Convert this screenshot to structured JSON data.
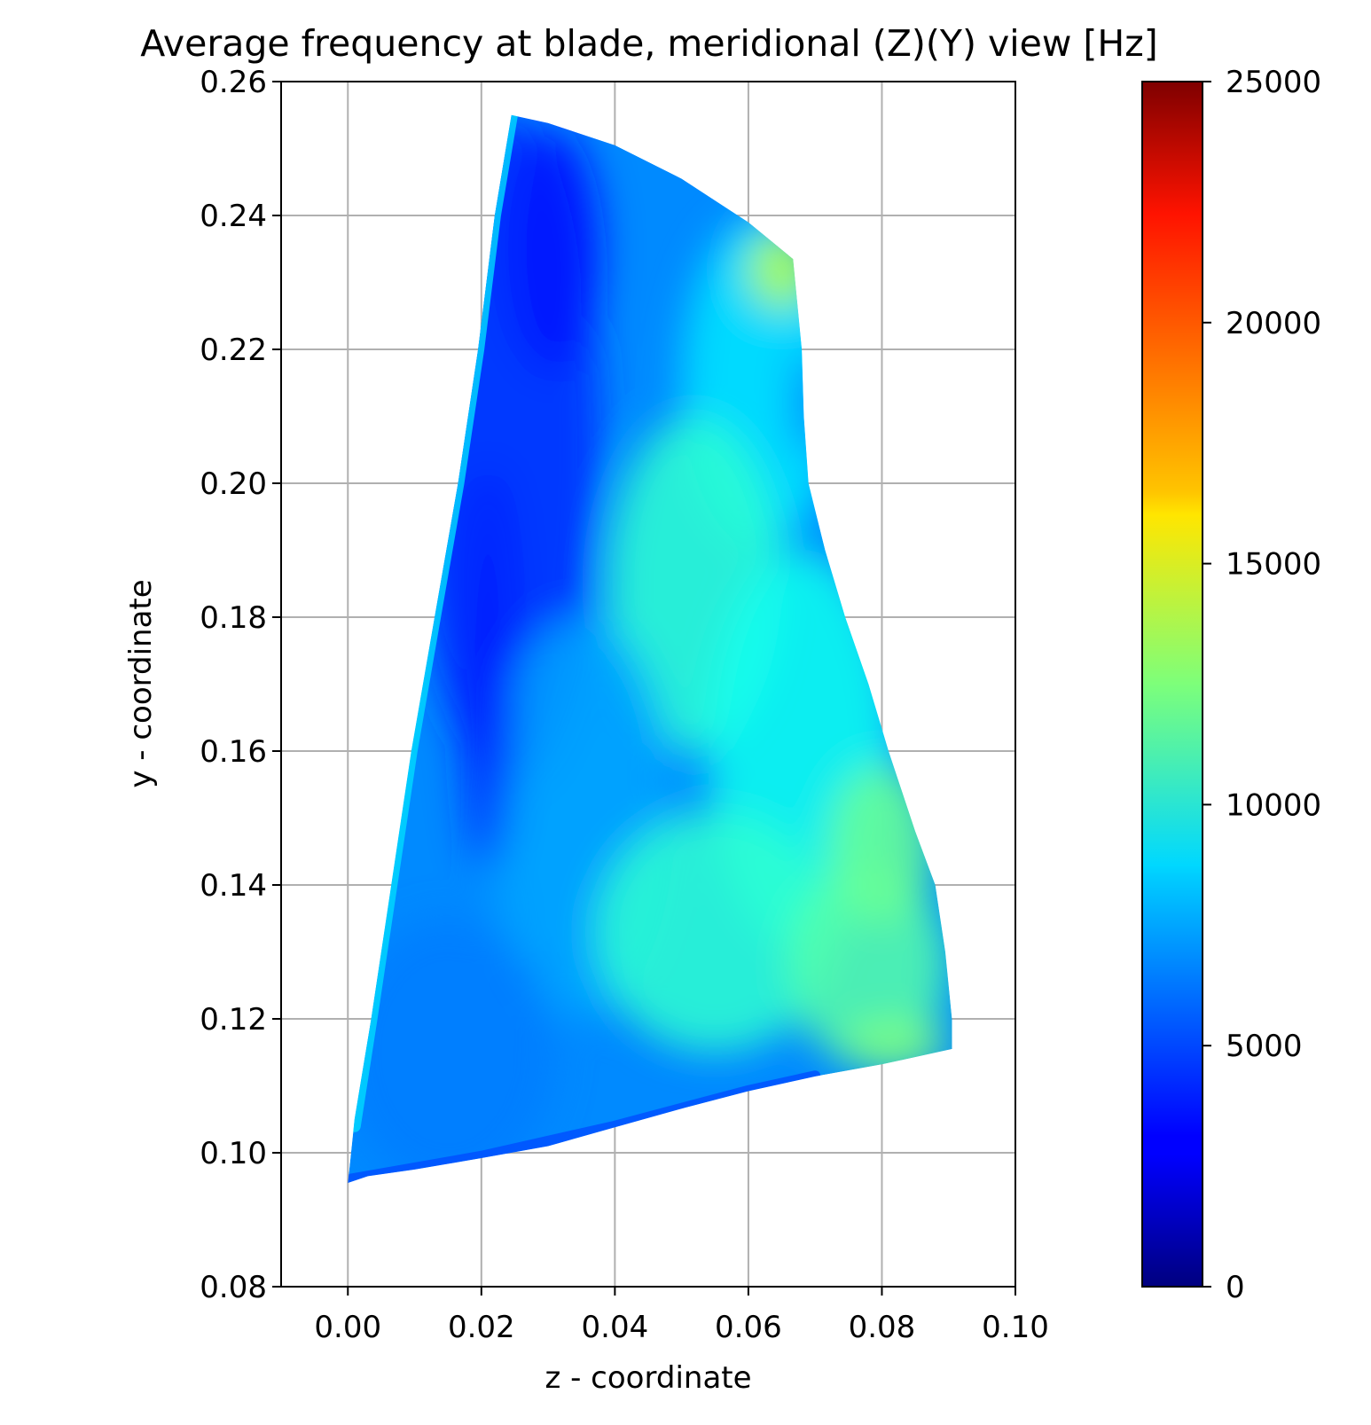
{
  "chart_data": {
    "type": "scatter",
    "title": "Average frequency at blade, meridional (Z)(Y) view [Hz]",
    "xlabel": "z - coordinate",
    "ylabel": "y - coordinate",
    "xlim": [
      -0.01,
      0.1
    ],
    "ylim": [
      0.08,
      0.26
    ],
    "xticks": [
      0.0,
      0.02,
      0.04,
      0.06,
      0.08,
      0.1
    ],
    "xtick_labels": [
      "0.00",
      "0.02",
      "0.04",
      "0.06",
      "0.08",
      "0.10"
    ],
    "yticks": [
      0.08,
      0.1,
      0.12,
      0.14,
      0.16,
      0.18,
      0.2,
      0.22,
      0.24,
      0.26
    ],
    "ytick_labels": [
      "0.08",
      "0.10",
      "0.12",
      "0.14",
      "0.16",
      "0.18",
      "0.20",
      "0.22",
      "0.24",
      "0.26"
    ],
    "grid": true,
    "colormap": "jet",
    "colorbar": {
      "range": [
        0,
        25000
      ],
      "ticks": [
        0,
        5000,
        10000,
        15000,
        20000,
        25000
      ],
      "tick_labels": [
        "0",
        "5000",
        "10000",
        "15000",
        "20000",
        "25000"
      ]
    },
    "blade_outline": [
      [
        0.0,
        0.0955
      ],
      [
        0.003,
        0.0965
      ],
      [
        0.01,
        0.0975
      ],
      [
        0.02,
        0.0992
      ],
      [
        0.03,
        0.101
      ],
      [
        0.04,
        0.1038
      ],
      [
        0.05,
        0.1066
      ],
      [
        0.06,
        0.1092
      ],
      [
        0.07,
        0.1114
      ],
      [
        0.08,
        0.1132
      ],
      [
        0.0905,
        0.1155
      ],
      [
        0.0905,
        0.12
      ],
      [
        0.0895,
        0.13
      ],
      [
        0.088,
        0.14
      ],
      [
        0.085,
        0.148
      ],
      [
        0.081,
        0.16
      ],
      [
        0.078,
        0.17
      ],
      [
        0.0745,
        0.18
      ],
      [
        0.0715,
        0.19
      ],
      [
        0.069,
        0.2
      ],
      [
        0.0683,
        0.21
      ],
      [
        0.068,
        0.22
      ],
      [
        0.0667,
        0.2335
      ],
      [
        0.06,
        0.239
      ],
      [
        0.05,
        0.2455
      ],
      [
        0.04,
        0.2505
      ],
      [
        0.03,
        0.2538
      ],
      [
        0.0245,
        0.255
      ],
      [
        0.022,
        0.24
      ],
      [
        0.0195,
        0.22
      ],
      [
        0.0165,
        0.2
      ],
      [
        0.013,
        0.18
      ],
      [
        0.0095,
        0.16
      ],
      [
        0.0065,
        0.14
      ],
      [
        0.0035,
        0.12
      ],
      [
        0.001,
        0.105
      ],
      [
        0.0,
        0.0955
      ]
    ],
    "background_frequency": 6500,
    "frequency_regions": [
      {
        "z": 0.024,
        "y": 0.205,
        "rz": 0.014,
        "ry": 0.05,
        "value": 4200
      },
      {
        "z": 0.031,
        "y": 0.235,
        "rz": 0.007,
        "ry": 0.018,
        "value": 3500
      },
      {
        "z": 0.062,
        "y": 0.215,
        "rz": 0.012,
        "ry": 0.025,
        "value": 8800
      },
      {
        "z": 0.052,
        "y": 0.185,
        "rz": 0.013,
        "ry": 0.025,
        "value": 10500
      },
      {
        "z": 0.068,
        "y": 0.16,
        "rz": 0.014,
        "ry": 0.03,
        "value": 9800
      },
      {
        "z": 0.035,
        "y": 0.15,
        "rz": 0.014,
        "ry": 0.03,
        "value": 7200
      },
      {
        "z": 0.055,
        "y": 0.133,
        "rz": 0.018,
        "ry": 0.018,
        "value": 10500
      },
      {
        "z": 0.078,
        "y": 0.128,
        "rz": 0.012,
        "ry": 0.015,
        "value": 11500
      },
      {
        "z": 0.08,
        "y": 0.146,
        "rz": 0.008,
        "ry": 0.012,
        "value": 12000
      },
      {
        "z": 0.065,
        "y": 0.232,
        "rz": 0.005,
        "ry": 0.006,
        "value": 14000
      },
      {
        "z": 0.015,
        "y": 0.115,
        "rz": 0.016,
        "ry": 0.02,
        "value": 6200
      },
      {
        "z": 0.082,
        "y": 0.116,
        "rz": 0.008,
        "ry": 0.004,
        "value": 12500
      },
      {
        "z": 0.069,
        "y": 0.212,
        "rz": 0.0016,
        "ry": 0.008,
        "value": 3500
      },
      {
        "z": 0.021,
        "y": 0.172,
        "rz": 0.004,
        "ry": 0.03,
        "value": 3800
      }
    ],
    "edge_bands": [
      {
        "name": "hub",
        "value": 5000,
        "path": [
          [
            0.0,
            0.096
          ],
          [
            0.02,
            0.0995
          ],
          [
            0.04,
            0.104
          ],
          [
            0.06,
            0.1093
          ],
          [
            0.07,
            0.1115
          ]
        ]
      },
      {
        "name": "leading",
        "value": 8500,
        "path": [
          [
            0.001,
            0.104
          ],
          [
            0.0035,
            0.12
          ],
          [
            0.0065,
            0.14
          ],
          [
            0.0095,
            0.16
          ],
          [
            0.013,
            0.18
          ],
          [
            0.0165,
            0.2
          ],
          [
            0.0195,
            0.22
          ],
          [
            0.022,
            0.24
          ],
          [
            0.0245,
            0.2548
          ]
        ]
      }
    ]
  }
}
